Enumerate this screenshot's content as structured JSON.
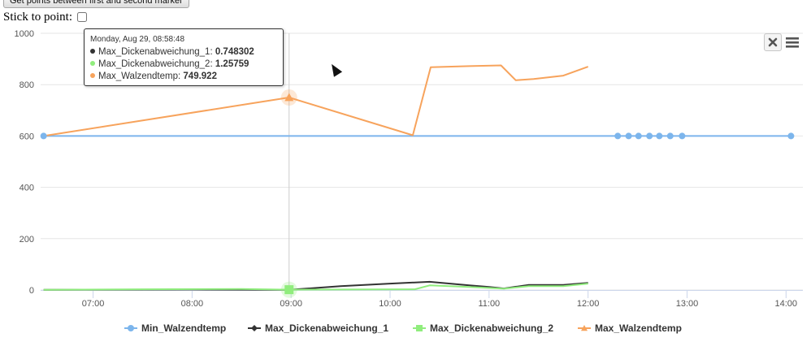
{
  "controls": {
    "button_label": "Get points between first and second marker",
    "stick_label": "Stick to point:"
  },
  "tooltip": {
    "header": "Monday, Aug 29, 08:58:48",
    "rows": [
      {
        "name": "Max_Dickenabweichung_1",
        "value": "0.748302",
        "color": "#333333"
      },
      {
        "name": "Max_Dickenabweichung_2",
        "value": "1.25759",
        "color": "#90ed7d"
      },
      {
        "name": "Max_Walzendtemp",
        "value": "749.922",
        "color": "#f7a35c"
      }
    ]
  },
  "icons": {
    "close": "close-icon",
    "menu": "hamburger-menu-icon",
    "cursor": "mouse-pointer-icon"
  },
  "chart_data": {
    "type": "line",
    "x_unit": "time of day (hours)",
    "xlim": [
      6.47,
      14.17
    ],
    "ylim": [
      0,
      1000
    ],
    "y_ticks": [
      0,
      200,
      400,
      600,
      800,
      1000
    ],
    "x_ticks": [
      {
        "x": 7.0,
        "label": "07:00"
      },
      {
        "x": 8.0,
        "label": "08:00"
      },
      {
        "x": 9.0,
        "label": "09:00"
      },
      {
        "x": 10.0,
        "label": "10:00"
      },
      {
        "x": 11.0,
        "label": "11:00"
      },
      {
        "x": 12.0,
        "label": "12:00"
      },
      {
        "x": 13.0,
        "label": "13:00"
      },
      {
        "x": 14.0,
        "label": "14:00"
      }
    ],
    "grid": true,
    "legend_position": "bottom-center",
    "crosshair_x": 8.98,
    "series": [
      {
        "name": "Min_Walzendtemp",
        "color": "#7cb5ec",
        "marker": "circle",
        "line_points": [
          [
            6.5,
            600
          ],
          [
            14.05,
            600
          ]
        ],
        "visible_markers": [
          [
            6.5,
            600
          ],
          [
            12.3,
            600
          ],
          [
            12.41,
            600
          ],
          [
            12.51,
            600
          ],
          [
            12.62,
            600
          ],
          [
            12.72,
            600
          ],
          [
            12.83,
            600
          ],
          [
            12.95,
            600
          ],
          [
            14.05,
            600
          ]
        ]
      },
      {
        "name": "Max_Dickenabweichung_1",
        "color": "#333333",
        "marker": "diamond",
        "line_points": [
          [
            6.5,
            1
          ],
          [
            8.0,
            2
          ],
          [
            8.98,
            0.748302
          ],
          [
            9.5,
            15
          ],
          [
            10.0,
            25
          ],
          [
            10.4,
            32
          ],
          [
            10.8,
            18
          ],
          [
            11.0,
            12
          ],
          [
            11.15,
            6
          ],
          [
            11.4,
            20
          ],
          [
            11.75,
            20
          ],
          [
            12.0,
            28
          ]
        ],
        "visible_markers": []
      },
      {
        "name": "Max_Dickenabweichung_2",
        "color": "#90ed7d",
        "marker": "square",
        "line_points": [
          [
            6.5,
            1
          ],
          [
            7.5,
            3
          ],
          [
            8.5,
            4
          ],
          [
            8.98,
            1.25759
          ],
          [
            9.5,
            2
          ],
          [
            10.25,
            3
          ],
          [
            10.4,
            18
          ],
          [
            10.8,
            12
          ],
          [
            11.15,
            5
          ],
          [
            11.4,
            15
          ],
          [
            11.75,
            15
          ],
          [
            12.0,
            25
          ]
        ],
        "visible_markers": [
          [
            8.98,
            1.25759
          ]
        ]
      },
      {
        "name": "Max_Walzendtemp",
        "color": "#f7a35c",
        "marker": "triangle",
        "line_points": [
          [
            6.5,
            600
          ],
          [
            8.98,
            749.922
          ],
          [
            10.23,
            603
          ],
          [
            10.41,
            868
          ],
          [
            10.8,
            872
          ],
          [
            11.12,
            875
          ],
          [
            11.27,
            817
          ],
          [
            11.45,
            822
          ],
          [
            11.75,
            835
          ],
          [
            12.0,
            870
          ]
        ],
        "visible_markers": [
          [
            8.98,
            749.922
          ]
        ]
      }
    ]
  }
}
